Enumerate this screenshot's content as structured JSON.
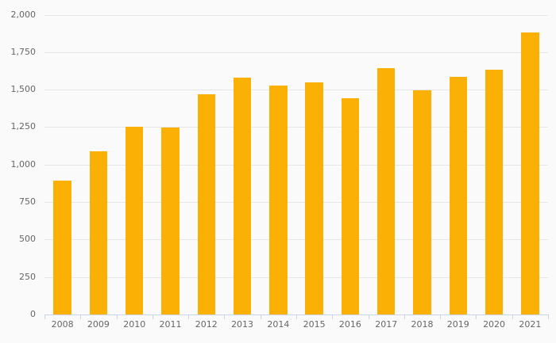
{
  "chart_data": {
    "type": "bar",
    "title": "",
    "xlabel": "",
    "ylabel": "",
    "categories": [
      "2008",
      "2009",
      "2010",
      "2011",
      "2012",
      "2013",
      "2014",
      "2015",
      "2016",
      "2017",
      "2018",
      "2019",
      "2020",
      "2021"
    ],
    "values": [
      895,
      1090,
      1255,
      1245,
      1470,
      1580,
      1525,
      1550,
      1445,
      1645,
      1495,
      1585,
      1635,
      1880
    ],
    "ylim": [
      0,
      2000
    ],
    "y_ticks": [
      0,
      250,
      500,
      750,
      1000,
      1250,
      1500,
      1750,
      2000
    ],
    "y_tick_labels": [
      "0",
      "250",
      "500",
      "750",
      "1,000",
      "1,250",
      "1,500",
      "1,750",
      "2,000"
    ],
    "grid": true,
    "legend": false,
    "colors": {
      "bar": "#fab005",
      "background": "#fafafa",
      "gridline": "#e6e6e6",
      "axis_line": "#ccd6eb",
      "tick": "#ccd6eb",
      "label_text": "#666666"
    }
  }
}
